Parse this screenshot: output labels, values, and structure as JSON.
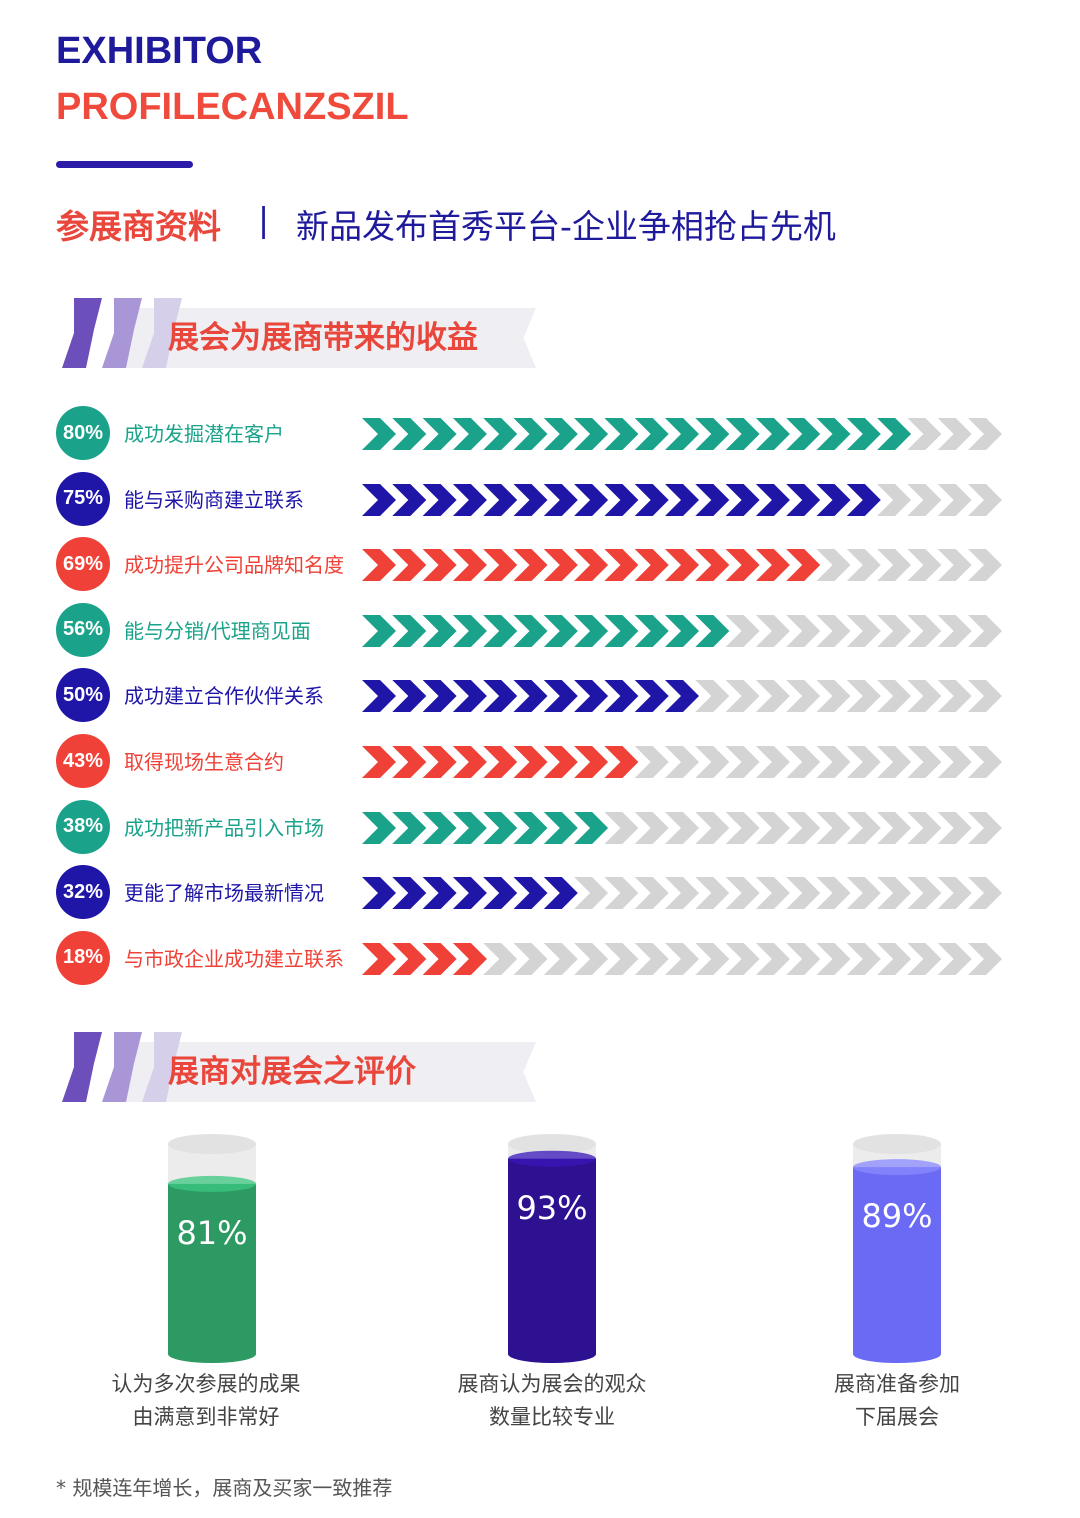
{
  "header": {
    "title_line1": "EXHIBITOR",
    "title_line2": "PROFILECANZSZIL",
    "subtitle_left": "参展商资料",
    "separator": "|",
    "subtitle_right": "新品发布首秀平台-企业争相抢占先机"
  },
  "colors": {
    "green": "#1aa38a",
    "navy": "#1f16a8",
    "red": "#ef4137",
    "grey": "#d4d4d4"
  },
  "chart_data": [
    {
      "type": "bar",
      "title": "展会为展商带来的收益",
      "categories": [
        "成功发掘潜在客户",
        "能与采购商建立联系",
        "成功提升公司品牌知名度",
        "能与分销/代理商见面",
        "成功建立合作伙伴关系",
        "取得现场生意合约",
        "成功把新产品引入市场",
        "更能了解市场最新情况",
        "与市政企业成功建立联系"
      ],
      "labels": [
        "80%",
        "75%",
        "69%",
        "56%",
        "50%",
        "43%",
        "38%",
        "32%",
        "18%"
      ],
      "values": [
        80,
        75,
        69,
        56,
        50,
        43,
        38,
        32,
        18
      ],
      "bar_colors": [
        "green",
        "navy",
        "red",
        "green",
        "navy",
        "red",
        "green",
        "navy",
        "red"
      ],
      "ylim": [
        0,
        100
      ]
    },
    {
      "type": "bar",
      "title": "展商对展会之评价",
      "categories": [
        [
          "认为多次参展的成果",
          "由满意到非常好"
        ],
        [
          "展商认为展会的观众",
          "数量比较专业"
        ],
        [
          "展商准备参加",
          "下届展会"
        ]
      ],
      "labels": [
        "81%",
        "93%",
        "89%"
      ],
      "values": [
        81,
        93,
        89
      ],
      "colors": [
        "#2e9a63",
        "#2d1190",
        "#6a6af5"
      ],
      "ylim": [
        0,
        100
      ]
    }
  ],
  "footnote": "* 规模连年增长，展商及买家一致推荐"
}
